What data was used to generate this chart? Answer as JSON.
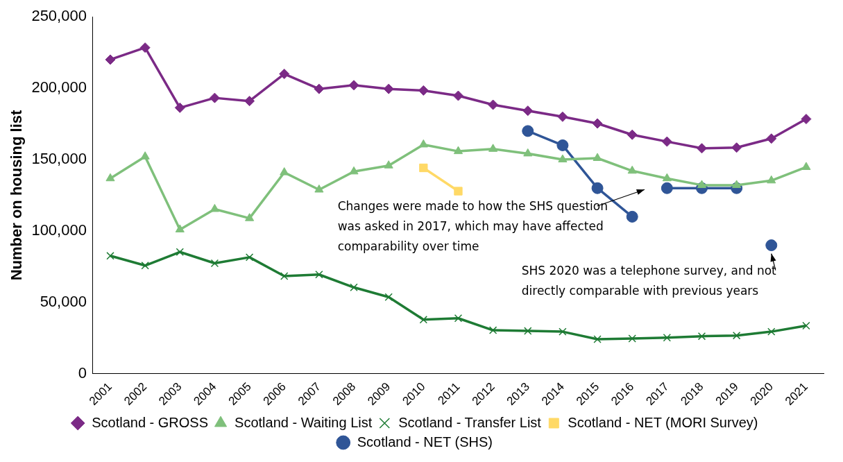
{
  "chart_data": {
    "type": "line",
    "ylabel": "Number on housing list",
    "categories": [
      "2001",
      "2002",
      "2003",
      "2004",
      "2005",
      "2006",
      "2007",
      "2008",
      "2009",
      "2010",
      "2011",
      "2012",
      "2013",
      "2014",
      "2015",
      "2016",
      "2017",
      "2018",
      "2019",
      "2020",
      "2021"
    ],
    "ylim": [
      0,
      250000
    ],
    "yticks": [
      {
        "value": 0,
        "label": "0"
      },
      {
        "value": 50000,
        "label": "50,000"
      },
      {
        "value": 100000,
        "label": "100,000"
      },
      {
        "value": 150000,
        "label": "150,000"
      },
      {
        "value": 200000,
        "label": "200,000"
      },
      {
        "value": 250000,
        "label": "250,000"
      }
    ],
    "grid": false,
    "legend": "bottom",
    "series": [
      {
        "name": "Scotland - GROSS",
        "color": "#7b2a86",
        "marker": "diamond",
        "values": [
          220000,
          228400,
          186300,
          193200,
          191000,
          210000,
          199500,
          202100,
          199500,
          198400,
          194700,
          188400,
          184200,
          180000,
          175300,
          167400,
          162600,
          157900,
          158400,
          164700,
          178400
        ]
      },
      {
        "name": "Scotland - Waiting List",
        "color": "#7fc07b",
        "marker": "triangle",
        "values": [
          136800,
          152100,
          101000,
          115300,
          108900,
          141000,
          128900,
          141600,
          145800,
          160500,
          155800,
          157400,
          154200,
          150000,
          151000,
          142100,
          136800,
          132100,
          132100,
          135300,
          144700
        ]
      },
      {
        "name": "Scotland - Transfer List",
        "color": "#1e7b34",
        "marker": "cross",
        "values": [
          82600,
          75800,
          85300,
          77400,
          81600,
          68400,
          69500,
          60500,
          53700,
          37900,
          38900,
          30500,
          30000,
          29500,
          24200,
          24700,
          25300,
          26300,
          26800,
          29500,
          33700
        ]
      },
      {
        "name": "Scotland - NET (MORI Survey)",
        "color": "#ffd966",
        "marker": "square",
        "values": [
          null,
          null,
          null,
          null,
          null,
          null,
          null,
          null,
          null,
          144200,
          127900,
          null,
          null,
          null,
          null,
          null,
          null,
          null,
          null,
          null,
          null
        ]
      },
      {
        "name": "Scotland - NET (SHS)",
        "color": "#2f5597",
        "marker": "circle",
        "values": [
          null,
          null,
          null,
          null,
          null,
          null,
          null,
          null,
          null,
          null,
          null,
          null,
          170000,
          160000,
          130000,
          110000,
          null,
          null,
          null,
          null,
          null
        ]
      },
      {
        "color": "#2f5597",
        "marker": "circle",
        "values": [
          null,
          null,
          null,
          null,
          null,
          null,
          null,
          null,
          null,
          null,
          null,
          null,
          null,
          null,
          null,
          null,
          130000,
          130000,
          130000,
          null,
          null
        ]
      },
      {
        "color": "#2f5597",
        "marker": "circle",
        "values": [
          null,
          null,
          null,
          null,
          null,
          null,
          null,
          null,
          null,
          null,
          null,
          null,
          null,
          null,
          null,
          null,
          null,
          null,
          null,
          90000,
          null
        ]
      }
    ],
    "annotations": [
      "Changes were made to how the SHS question was asked in 2017, which may have affected comparability over time",
      {
        "text": "SHS 2020 was a telephone survey, and not directly comparable with previous years",
        "x": "2020",
        "y": 90000
      }
    ]
  }
}
